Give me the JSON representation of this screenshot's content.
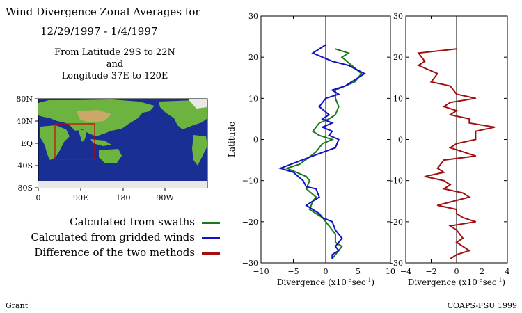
{
  "header": {
    "title": "Wind Divergence Zonal Averages for",
    "dates": "12/29/1997 - 1/4/1997",
    "region_line1": "From Latitude 29S to 22N",
    "region_line2": "and",
    "region_line3": "Longitude 37E to 120E"
  },
  "map": {
    "lat_labels": [
      "80N",
      "40N",
      "EQ",
      "40S",
      "80S"
    ],
    "lon_labels": [
      "0",
      "90E",
      "180",
      "90W"
    ],
    "colors": {
      "ocean": "#1a2f94",
      "land_low": "#6db33f",
      "land_high": "#c9a86a",
      "box": "#cc0000"
    }
  },
  "legend": [
    {
      "label": "Calculated from swaths",
      "color": "#1a7a1a"
    },
    {
      "label": "Calculated from gridded winds",
      "color": "#1010c8"
    },
    {
      "label": "Difference of the two methods",
      "color": "#a01010"
    }
  ],
  "footer": {
    "left": "Grant",
    "right": "COAPS-FSU 1999"
  },
  "chart_data": [
    {
      "type": "line",
      "ylabel": "Latitude",
      "xlabel": "Divergence (x10",
      "xlabel_exp": "-6",
      "xlabel_unit": "sec",
      "xlabel_unit_exp": "-1",
      "xlim": [
        -10,
        10
      ],
      "ylim": [
        -30,
        30
      ],
      "x_ticks": [
        -10,
        -5,
        0,
        5,
        10
      ],
      "y_ticks": [
        -30,
        -20,
        -10,
        0,
        10,
        20,
        30
      ],
      "orientation": "vertical-profile",
      "series": [
        {
          "name": "Calculated from swaths",
          "color": "#1a7a1a",
          "points": [
            [
              1.5,
              22
            ],
            [
              3.5,
              21
            ],
            [
              2.5,
              20
            ],
            [
              5.5,
              16
            ],
            [
              4.5,
              14
            ],
            [
              1.5,
              12
            ],
            [
              1.5,
              10
            ],
            [
              2,
              8
            ],
            [
              1.5,
              6
            ],
            [
              0.5,
              5
            ],
            [
              -1,
              4
            ],
            [
              -2,
              2
            ],
            [
              -1,
              1
            ],
            [
              1,
              0
            ],
            [
              -0.5,
              -1
            ],
            [
              -1.5,
              -3
            ],
            [
              -4,
              -6
            ],
            [
              -6,
              -7
            ],
            [
              -3,
              -9
            ],
            [
              -2.5,
              -10
            ],
            [
              -3,
              -12
            ],
            [
              -1.5,
              -14
            ],
            [
              -2,
              -15
            ],
            [
              -2.5,
              -17
            ],
            [
              -0.5,
              -19
            ],
            [
              0,
              -20
            ],
            [
              0.5,
              -21
            ],
            [
              1.5,
              -23
            ],
            [
              1.5,
              -25
            ],
            [
              2.5,
              -26
            ],
            [
              1.5,
              -28
            ],
            [
              1,
              -29
            ]
          ]
        },
        {
          "name": "Calculated from gridded winds",
          "color": "#1010c8",
          "points": [
            [
              0,
              23
            ],
            [
              -2,
              21
            ],
            [
              1,
              19
            ],
            [
              3.5,
              18
            ],
            [
              6,
              16
            ],
            [
              4,
              14
            ],
            [
              3,
              13
            ],
            [
              1,
              12
            ],
            [
              2,
              11
            ],
            [
              0,
              10
            ],
            [
              -1,
              8
            ],
            [
              0.5,
              6
            ],
            [
              -0.5,
              5
            ],
            [
              1,
              4
            ],
            [
              -0.5,
              3
            ],
            [
              1,
              2
            ],
            [
              0.5,
              1
            ],
            [
              2,
              0
            ],
            [
              1.5,
              -2
            ],
            [
              -2,
              -4
            ],
            [
              -7,
              -7
            ],
            [
              -5,
              -8
            ],
            [
              -3.5,
              -10
            ],
            [
              -3,
              -11.5
            ],
            [
              -1.5,
              -12
            ],
            [
              -1,
              -14
            ],
            [
              -3,
              -16
            ],
            [
              -2,
              -17
            ],
            [
              -1,
              -18
            ],
            [
              -0.5,
              -19
            ],
            [
              1,
              -20
            ],
            [
              1.5,
              -22
            ],
            [
              2.5,
              -24
            ],
            [
              1.5,
              -26
            ],
            [
              2,
              -27
            ],
            [
              1,
              -28
            ],
            [
              1,
              -29
            ]
          ]
        }
      ]
    },
    {
      "type": "line",
      "xlabel": "Divergence (x10",
      "xlabel_exp": "-6",
      "xlabel_unit": "sec",
      "xlabel_unit_exp": "-1",
      "xlim": [
        -4,
        4
      ],
      "ylim": [
        -30,
        30
      ],
      "x_ticks": [
        -4,
        -2,
        0,
        2,
        4
      ],
      "y_ticks": [
        -30,
        -20,
        -10,
        0,
        10,
        20,
        30
      ],
      "orientation": "vertical-profile",
      "series": [
        {
          "name": "Difference of the two methods",
          "color": "#a01010",
          "points": [
            [
              0,
              22
            ],
            [
              -3,
              21
            ],
            [
              -2.5,
              19
            ],
            [
              -3,
              18
            ],
            [
              -1.5,
              16
            ],
            [
              -2,
              14
            ],
            [
              -0.5,
              13
            ],
            [
              0,
              11
            ],
            [
              1.5,
              10
            ],
            [
              -0.5,
              9
            ],
            [
              -1,
              8
            ],
            [
              0,
              7
            ],
            [
              -0.5,
              6
            ],
            [
              1,
              5
            ],
            [
              1,
              4
            ],
            [
              3,
              3
            ],
            [
              1.5,
              2
            ],
            [
              1.5,
              0
            ],
            [
              0,
              -1
            ],
            [
              -0.5,
              -2
            ],
            [
              1.5,
              -4
            ],
            [
              -1,
              -5
            ],
            [
              -1.5,
              -7
            ],
            [
              -1,
              -8
            ],
            [
              -2.5,
              -9
            ],
            [
              -1,
              -10
            ],
            [
              -0.5,
              -11
            ],
            [
              -1,
              -12
            ],
            [
              0.5,
              -13
            ],
            [
              1,
              -14
            ],
            [
              -1.5,
              -16
            ],
            [
              0,
              -17
            ],
            [
              0,
              -18
            ],
            [
              0.5,
              -19
            ],
            [
              1.5,
              -20
            ],
            [
              -0.5,
              -21
            ],
            [
              0,
              -22
            ],
            [
              0.5,
              -24
            ],
            [
              0,
              -25
            ],
            [
              1,
              -27
            ],
            [
              0,
              -28
            ],
            [
              -0.5,
              -29
            ]
          ]
        }
      ]
    }
  ]
}
